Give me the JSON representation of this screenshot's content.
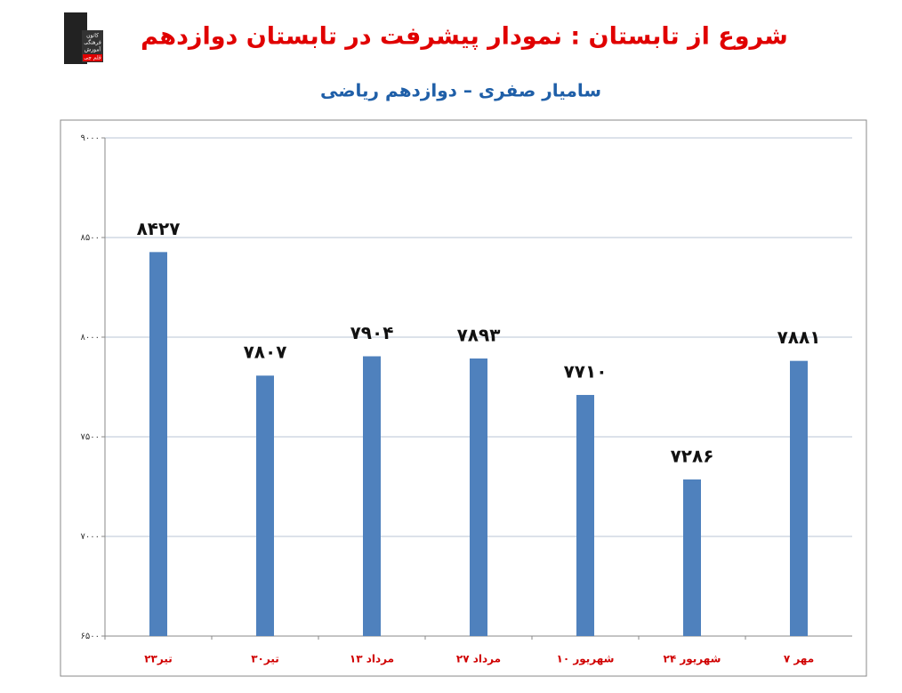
{
  "logo": {
    "lines": [
      "کانون",
      "فرهنگی",
      "آموزش",
      "قلم چی"
    ]
  },
  "chart_data": {
    "type": "bar",
    "title": "شروع از تابستان : نمودار پیشرفت در تابستان دوازدهم",
    "subtitle": "سامیار صفری – دوازدهم ریاضی",
    "categories": [
      "۲۳تیر",
      "۳۰تیر",
      "۱۳ مرداد",
      "۲۷ مرداد",
      "۱۰ شهریور",
      "۲۴ شهریور",
      "۷ مهر"
    ],
    "values": [
      8427,
      7807,
      7904,
      7893,
      7710,
      7286,
      7881
    ],
    "value_labels": [
      "۸۴۲۷",
      "۷۸۰۷",
      "۷۹۰۴",
      "۷۸۹۳",
      "۷۷۱۰",
      "۷۲۸۶",
      "۷۸۸۱"
    ],
    "color": "#4f81bd",
    "ylim": [
      6500,
      9000
    ],
    "yticks": [
      {
        "value": 6500,
        "label": "۶۵۰۰"
      },
      {
        "value": 7000,
        "label": "۷۰۰۰"
      },
      {
        "value": 7500,
        "label": "۷۵۰۰"
      },
      {
        "value": 8000,
        "label": "۸۰۰۰"
      },
      {
        "value": 8500,
        "label": "۸۵۰۰"
      },
      {
        "value": 9000,
        "label": "۹۰۰۰"
      }
    ],
    "grid": true
  }
}
